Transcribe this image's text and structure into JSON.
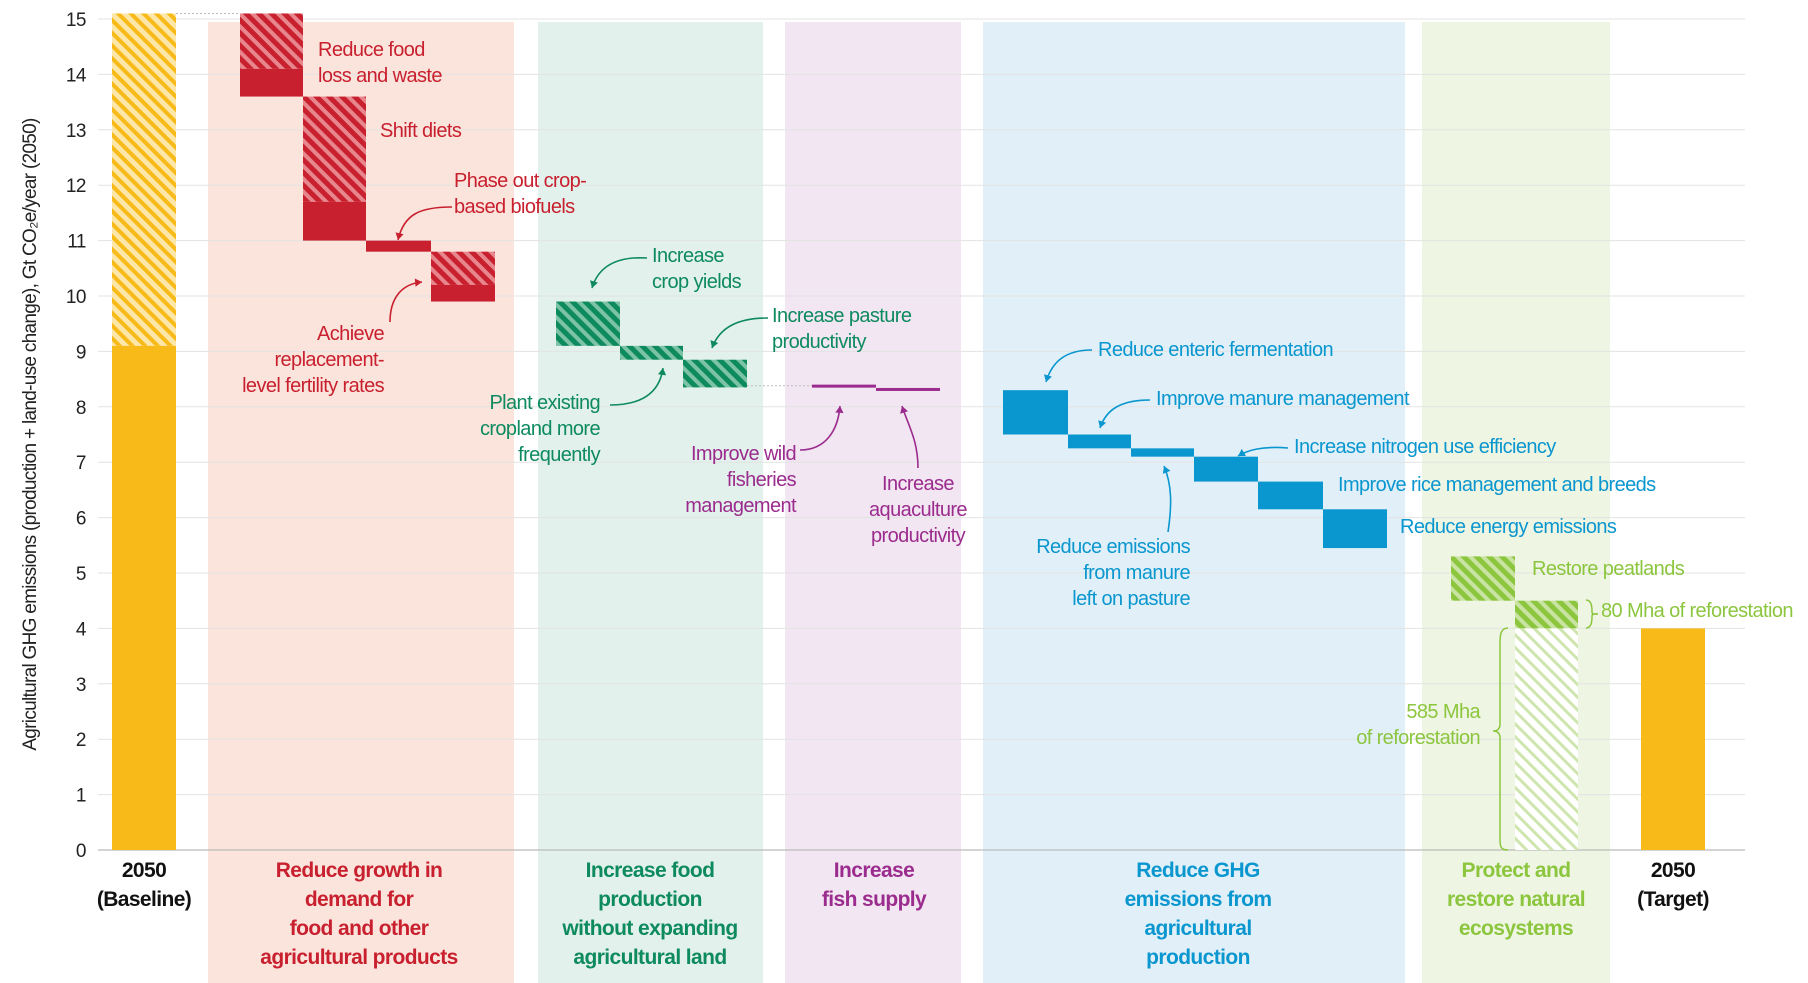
{
  "chart_data": {
    "type": "bar",
    "subtype": "waterfall",
    "ylabel": "Agricultural GHG emissions (production + land-use change), Gt CO₂e/year (2050)",
    "ylim": [
      0,
      15
    ],
    "yticks": [
      "0",
      "1",
      "2",
      "3",
      "4",
      "5",
      "6",
      "7",
      "8",
      "9",
      "10",
      "11",
      "12",
      "13",
      "14",
      "15"
    ],
    "grid": true,
    "colors": {
      "baseline": "#F7BA18",
      "demand": "#C8202E",
      "demand_bg": "#FBE4DC",
      "food": "#0E8A5F",
      "food_bg": "#E2F1EB",
      "fish": "#9B2C8E",
      "fish_bg": "#F1E6F1",
      "ghg": "#0A96CF",
      "ghg_bg": "#E1F0F8",
      "eco": "#8CC63F",
      "eco_bg": "#EEF5E2"
    },
    "panels": [
      {
        "key": "baseline",
        "label": "2050\n(Baseline)"
      },
      {
        "key": "demand",
        "label": "Reduce growth in\ndemand for\nfood and other\nagricultural products"
      },
      {
        "key": "food",
        "label": "Increase food\nproduction\nwithout expanding\nagricultural land"
      },
      {
        "key": "fish",
        "label": "Increase\nfish supply"
      },
      {
        "key": "ghg",
        "label": "Reduce GHG\nemissions from\nagricultural\nproduction"
      },
      {
        "key": "eco",
        "label": "Protect and\nrestore natural\necosystems"
      },
      {
        "key": "target",
        "label": "2050\n(Target)"
      }
    ],
    "totals": [
      {
        "name": "2050 (Baseline)",
        "value": 15.1,
        "solid_to": 9.1,
        "group": "baseline"
      },
      {
        "name": "2050 (Target)",
        "value": 4.0,
        "group": "target"
      }
    ],
    "steps": [
      {
        "name": "Reduce food loss and waste",
        "group": "demand",
        "from": 15.1,
        "to": 13.6,
        "solid_to": 14.1
      },
      {
        "name": "Shift diets",
        "group": "demand",
        "from": 13.6,
        "to": 11.0,
        "solid_to": 11.7
      },
      {
        "name": "Phase out crop-based biofuels",
        "group": "demand",
        "from": 11.0,
        "to": 10.8
      },
      {
        "name": "Achieve replacement-level fertility rates",
        "group": "demand",
        "from": 10.8,
        "to": 9.9,
        "solid_to": 10.2
      },
      {
        "name": "Increase crop yields",
        "group": "food",
        "from": 9.9,
        "to": 9.1
      },
      {
        "name": "Plant existing cropland more frequently",
        "group": "food",
        "from": 9.1,
        "to": 8.85
      },
      {
        "name": "Increase pasture productivity",
        "group": "food",
        "from": 8.85,
        "to": 8.35
      },
      {
        "name": "Improve wild fisheries management",
        "group": "fish",
        "from": 8.4,
        "to": 8.34
      },
      {
        "name": "Increase aquaculture productivity",
        "group": "fish",
        "from": 8.34,
        "to": 8.28
      },
      {
        "name": "Reduce enteric fermentation",
        "group": "ghg",
        "from": 8.3,
        "to": 7.5
      },
      {
        "name": "Improve manure management",
        "group": "ghg",
        "from": 7.5,
        "to": 7.25
      },
      {
        "name": "Reduce emissions from manure left on pasture",
        "group": "ghg",
        "from": 7.25,
        "to": 7.1
      },
      {
        "name": "Increase nitrogen use efficiency",
        "group": "ghg",
        "from": 7.1,
        "to": 6.65
      },
      {
        "name": "Improve rice management and breeds",
        "group": "ghg",
        "from": 6.65,
        "to": 6.15
      },
      {
        "name": "Reduce energy emissions",
        "group": "ghg",
        "from": 6.15,
        "to": 5.45
      },
      {
        "name": "Restore peatlands",
        "group": "eco",
        "from": 5.3,
        "to": 4.5
      },
      {
        "name": "80 Mha of reforestation",
        "group": "eco",
        "from": 4.5,
        "to": 4.0
      },
      {
        "name": "585 Mha of reforestation",
        "group": "eco",
        "from": 4.0,
        "to": 0.0,
        "hatched": true
      }
    ],
    "annotations": {
      "food_loss": "Reduce food\nloss and waste",
      "shift_diets": "Shift diets",
      "biofuels": "Phase out crop-\nbased biofuels",
      "fertility": "Achieve\nreplacement-\nlevel fertility rates",
      "crop_yields": "Increase\ncrop yields",
      "pasture": "Increase pasture\nproductivity",
      "cropland": "Plant existing\ncropland more\nfrequently",
      "wild_fish": "Improve wild\nfisheries\nmanagement",
      "aquaculture": "Increase\naquaculture\nproductivity",
      "enteric": "Reduce enteric fermentation",
      "manure": "Improve manure management",
      "nitrogen": "Increase nitrogen use efficiency",
      "pasture_manure": "Reduce emissions\nfrom manure\nleft on pasture",
      "rice": "Improve rice management and breeds",
      "energy": "Reduce energy emissions",
      "peatlands": "Restore peatlands",
      "reforest_80": "80 Mha of reforestation",
      "reforest_585": "585 Mha\nof reforestation"
    }
  }
}
